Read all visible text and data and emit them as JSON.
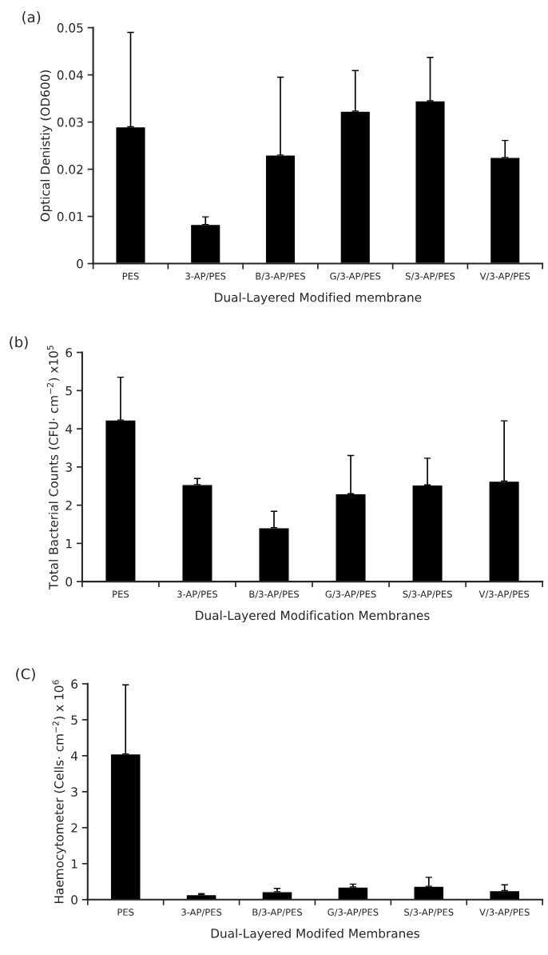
{
  "chart_data": [
    {
      "type": "bar",
      "title": "(a)",
      "xlabel": "Dual-Layered Modified membrane",
      "ylabel": "Optical Denistiy (OD600)",
      "categories": [
        "PES",
        "3-AP/PES",
        "B/3-AP/PES",
        "G/3-AP/PES",
        "S/3-AP/PES",
        "V/3-AP/PES"
      ],
      "color": "#000000",
      "values": [
        0.029,
        0.0083,
        0.023,
        0.0323,
        0.0345,
        0.0225
      ],
      "errors": [
        [
          0.029,
          0.049
        ],
        [
          0.0083,
          0.0099
        ],
        [
          0.023,
          0.0395
        ],
        [
          0.0323,
          0.0409
        ],
        [
          0.0345,
          0.0437
        ],
        [
          0.0225,
          0.0261
        ]
      ],
      "ylim": [
        0,
        0.05
      ],
      "yticks": [
        {
          "value": 0,
          "label": "0"
        },
        0.01,
        0.02,
        0.03,
        0.04,
        0.05
      ],
      "grid": false,
      "legend": false
    },
    {
      "type": "bar",
      "title": "(b)",
      "xlabel": "Dual-Layered Modification Membranes",
      "ylabel": "Total Bacterial Counts (CFU· cm$^{−2}$) x10$^{5}$",
      "categories": [
        "PES",
        "3-AP/PES",
        "B/3-AP/PES",
        "G/3-AP/PES",
        "S/3-AP/PES",
        "V/3-AP/PES"
      ],
      "color": "#000000",
      "values": [
        4.23,
        2.54,
        1.41,
        2.3,
        2.53,
        2.63
      ],
      "errors": [
        [
          4.23,
          5.35
        ],
        [
          2.54,
          2.7
        ],
        [
          1.41,
          1.84
        ],
        [
          2.3,
          3.3
        ],
        [
          2.53,
          3.23
        ],
        [
          2.63,
          4.21
        ]
      ],
      "ylim": [
        0,
        6
      ],
      "yticks": [
        0,
        1,
        2,
        3,
        4,
        5,
        6
      ],
      "grid": false,
      "legend": false
    },
    {
      "type": "bar",
      "title": "(C)",
      "xlabel": "Dual-Layered Modifed Membranes",
      "ylabel": "Haemocytometer (Cells· cm$^{−2}$) x 10$^{6}$",
      "categories": [
        "PES",
        "3-AP/PES",
        "B/3-AP/PES",
        "G/3-AP/PES",
        "S/3-AP/PES",
        "V/3-AP/PES"
      ],
      "color": "#000000",
      "values": [
        4.05,
        0.14,
        0.22,
        0.35,
        0.37,
        0.25
      ],
      "errors": [
        [
          4.05,
          5.97
        ],
        [
          0.14,
          0.17
        ],
        [
          0.22,
          0.31
        ],
        [
          0.35,
          0.43
        ],
        [
          0.37,
          0.62
        ],
        [
          0.25,
          0.41
        ]
      ],
      "ylim": [
        0,
        6
      ],
      "yticks": [
        0,
        1,
        2,
        3,
        4,
        5,
        6
      ],
      "grid": false,
      "legend": false
    }
  ]
}
